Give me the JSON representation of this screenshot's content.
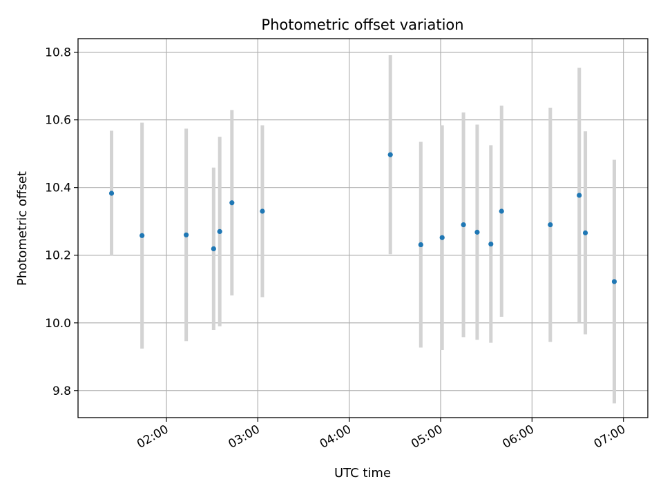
{
  "chart_data": {
    "type": "scatter",
    "title": "Photometric offset variation",
    "xlabel": "UTC time",
    "ylabel": "Photometric offset",
    "x_unit": "time of day (UTC)",
    "xlim": [
      "01:02",
      "07:16"
    ],
    "ylim": [
      9.72,
      10.84
    ],
    "x_ticks": [
      "02:00",
      "03:00",
      "04:00",
      "05:00",
      "06:00",
      "07:00"
    ],
    "y_ticks": [
      9.8,
      10.0,
      10.2,
      10.4,
      10.6,
      10.8
    ],
    "y_tick_labels": [
      "9.8",
      "10.0",
      "10.2",
      "10.4",
      "10.6",
      "10.8"
    ],
    "grid": true,
    "point_color": "#1f77b4",
    "errorbar_color": "#d3d3d3",
    "series": [
      {
        "points": [
          {
            "x": "01:24",
            "y": 10.383,
            "yerr": 0.185
          },
          {
            "x": "01:44",
            "y": 10.258,
            "yerr": 0.334
          },
          {
            "x": "02:13",
            "y": 10.26,
            "yerr": 0.314
          },
          {
            "x": "02:31",
            "y": 10.219,
            "yerr": 0.24
          },
          {
            "x": "02:35",
            "y": 10.27,
            "yerr": 0.28
          },
          {
            "x": "02:43",
            "y": 10.355,
            "yerr": 0.274
          },
          {
            "x": "03:03",
            "y": 10.33,
            "yerr": 0.254
          },
          {
            "x": "04:27",
            "y": 10.497,
            "yerr": 0.294
          },
          {
            "x": "04:47",
            "y": 10.231,
            "yerr": 0.304
          },
          {
            "x": "05:01",
            "y": 10.252,
            "yerr": 0.332
          },
          {
            "x": "05:15",
            "y": 10.29,
            "yerr": 0.332
          },
          {
            "x": "05:24",
            "y": 10.268,
            "yerr": 0.318
          },
          {
            "x": "05:33",
            "y": 10.233,
            "yerr": 0.292
          },
          {
            "x": "05:40",
            "y": 10.33,
            "yerr": 0.312
          },
          {
            "x": "06:12",
            "y": 10.29,
            "yerr": 0.346
          },
          {
            "x": "06:31",
            "y": 10.377,
            "yerr": 0.377
          },
          {
            "x": "06:35",
            "y": 10.266,
            "yerr": 0.3
          },
          {
            "x": "06:54",
            "y": 10.122,
            "yerr": 0.36
          }
        ]
      }
    ]
  }
}
